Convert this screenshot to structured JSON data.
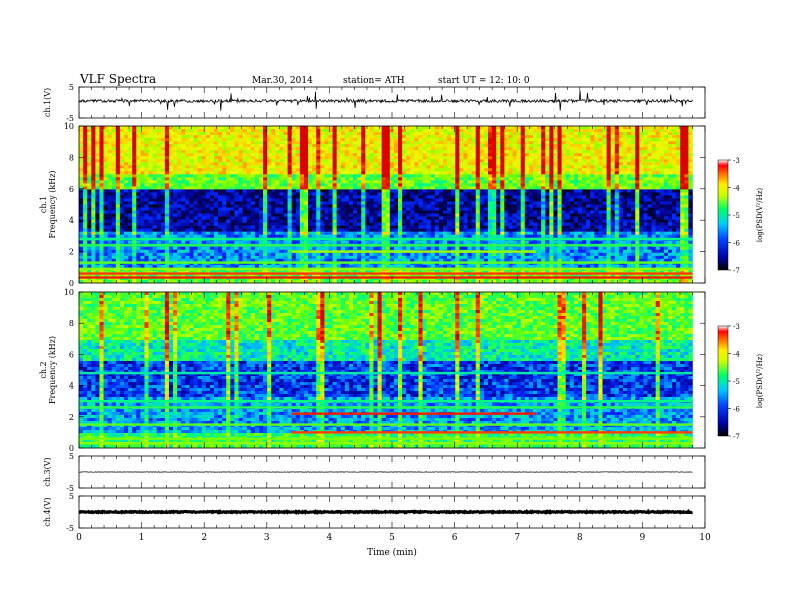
{
  "header": {
    "title": "VLF  Spectra",
    "date": "Mar.30, 2014",
    "station": "station= ATH",
    "start": "start  UT  =    12: 10: 0"
  },
  "chart_data": [
    {
      "type": "line",
      "name": "ch1-waveform",
      "ylabel": "ch.1(V)",
      "ylim": [
        -5,
        5
      ],
      "yticks": [
        "5",
        "-5"
      ],
      "x_range_min": [
        0,
        9.8
      ],
      "description_level": 0.5
    },
    {
      "type": "heatmap",
      "name": "ch1-spectrogram",
      "ylabel": "ch.1\nFrequency  (kHz)",
      "ylabel_lines": [
        "ch.1",
        "Frequency  (kHz)"
      ],
      "ylim": [
        0,
        10
      ],
      "yticks": [
        "0",
        "2",
        "4",
        "6",
        "8",
        "10"
      ],
      "x_range_min": [
        0,
        9.8
      ],
      "colorbar": {
        "label": "log(PSD(V²/Hz)",
        "range": [
          -7,
          -3
        ],
        "ticks": [
          "-3",
          "-4",
          "-5",
          "-6",
          "-7"
        ]
      }
    },
    {
      "type": "heatmap",
      "name": "ch2-spectrogram",
      "ylabel_lines": [
        "ch.2",
        "Frequency  (kHz)"
      ],
      "ylim": [
        0,
        10
      ],
      "yticks": [
        "0",
        "2",
        "4",
        "6",
        "8",
        "10"
      ],
      "x_range_min": [
        0,
        9.8
      ],
      "colorbar": {
        "label": "log(PSD(V²/Hz)",
        "range": [
          -7,
          -3
        ],
        "ticks": [
          "-3",
          "-4",
          "-5",
          "-6",
          "-7"
        ]
      }
    },
    {
      "type": "line",
      "name": "ch3-waveform",
      "ylabel": "ch.3(V)",
      "ylim": [
        -5,
        5
      ],
      "yticks": [
        "5",
        "-5"
      ],
      "x_range_min": [
        0,
        9.8
      ],
      "level": 0.0
    },
    {
      "type": "line",
      "name": "ch4-waveform",
      "ylabel": "ch.4(V)",
      "ylim": [
        -5,
        5
      ],
      "yticks": [
        "5",
        "-5"
      ],
      "x_range_min": [
        0,
        9.8
      ],
      "level": 0.0
    }
  ],
  "xaxis": {
    "label": "Time  (min)",
    "range": [
      0,
      10
    ],
    "ticks": [
      "0",
      "1",
      "2",
      "3",
      "4",
      "5",
      "6",
      "7",
      "8",
      "9",
      "10"
    ]
  },
  "colors": {
    "waveform": "#000000",
    "colormap": [
      "#000066",
      "#0000ff",
      "#00aaff",
      "#00ff66",
      "#aaff00",
      "#ffff00",
      "#ff8800",
      "#ff0000",
      "#ffffff"
    ]
  }
}
